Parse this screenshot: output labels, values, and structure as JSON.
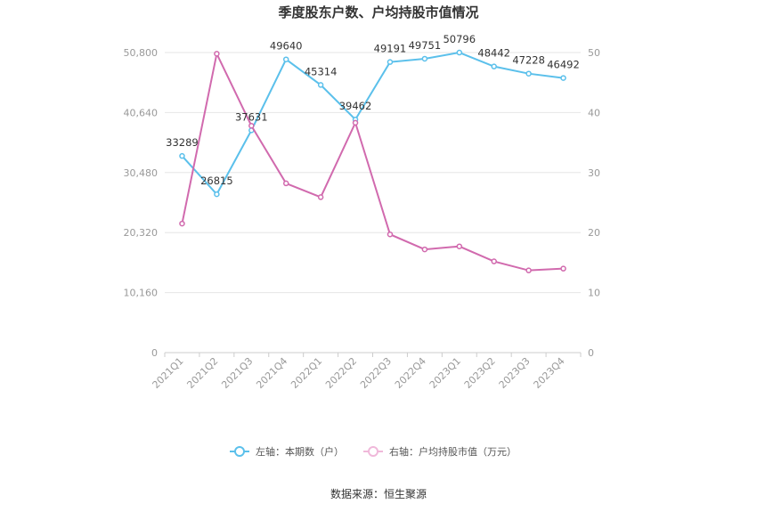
{
  "chart_data": {
    "type": "line",
    "title": "季度股东户数、户均持股市值情况",
    "categories": [
      "2021Q1",
      "2021Q2",
      "2021Q3",
      "2021Q4",
      "2022Q1",
      "2022Q2",
      "2022Q3",
      "2022Q4",
      "2023Q1",
      "2023Q2",
      "2023Q3",
      "2023Q4"
    ],
    "left_axis": {
      "ticks": [
        "0",
        "10,160",
        "20,320",
        "30,480",
        "40,640",
        "50,800"
      ],
      "range": [
        0,
        50800
      ]
    },
    "right_axis": {
      "ticks": [
        "0",
        "10",
        "20",
        "30",
        "40",
        "50"
      ],
      "range": [
        0,
        50
      ]
    },
    "series": [
      {
        "name": "左轴：本期数（户）",
        "axis": "left",
        "color": "#5bc0eb",
        "values": [
          33289,
          26815,
          37631,
          49640,
          45314,
          39462,
          49191,
          49751,
          50796,
          48442,
          47228,
          46492
        ],
        "labels": [
          "33289",
          "26815",
          "37631",
          "49640",
          "45314",
          "39462",
          "49191",
          "49751",
          "50796",
          "48442",
          "47228",
          "46492"
        ]
      },
      {
        "name": "右轴：户均持股市值（万元）",
        "axis": "right",
        "color": "#d16aae",
        "values": [
          21.5,
          49.8,
          37.8,
          28.2,
          25.9,
          38.3,
          19.7,
          17.2,
          17.7,
          15.2,
          13.7,
          14.0
        ]
      }
    ],
    "grid": true,
    "legend": "bottom"
  },
  "source": "数据来源：恒生聚源"
}
